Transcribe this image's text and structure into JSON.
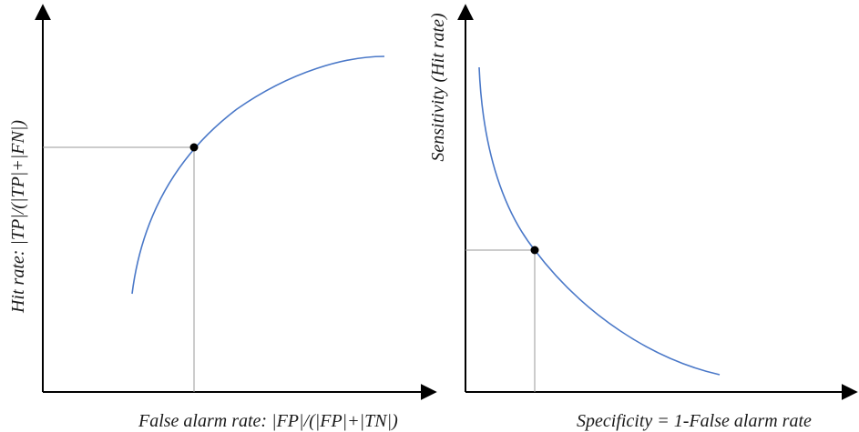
{
  "left_panel": {
    "x_label": "False alarm rate: |FP|/(|FP|+|TN|)",
    "y_label": "Hit rate: |TP|/(|TP|+|FN|)",
    "curve_shape": "concave-increasing",
    "curve_color": "#4a78c8"
  },
  "right_panel": {
    "x_label": "Specificity = 1-False alarm rate",
    "y_label": "Sensitivity (Hit rate)",
    "curve_shape": "convex-decreasing",
    "curve_color": "#4a78c8"
  },
  "colors": {
    "axis": "#000000",
    "guide": "#9a9a9a",
    "point": "#000000"
  }
}
